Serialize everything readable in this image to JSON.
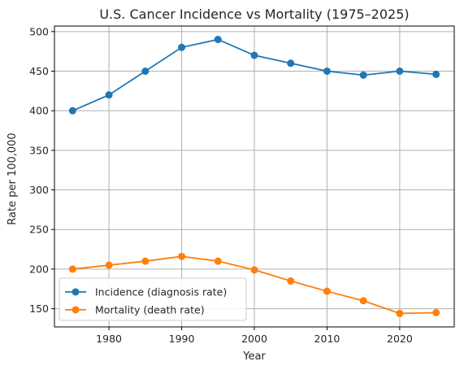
{
  "chart_data": {
    "type": "line",
    "title": "U.S. Cancer Incidence vs Mortality (1975–2025)",
    "xlabel": "Year",
    "ylabel": "Rate per 100,000",
    "x": [
      1975,
      1980,
      1985,
      1990,
      1995,
      2000,
      2005,
      2010,
      2015,
      2020,
      2025
    ],
    "xlim": [
      1972.5,
      2027.5
    ],
    "ylim": [
      127,
      507
    ],
    "xticks": [
      1980,
      1990,
      2000,
      2010,
      2020
    ],
    "yticks": [
      150,
      200,
      250,
      300,
      350,
      400,
      450,
      500
    ],
    "grid": true,
    "legend_position": "lower-left",
    "marker": "circle",
    "series": [
      {
        "name": "Incidence (diagnosis rate)",
        "color": "#1f77b4",
        "values": [
          400,
          420,
          450,
          480,
          490,
          470,
          460,
          450,
          445,
          450,
          446
        ]
      },
      {
        "name": "Mortality (death rate)",
        "color": "#ff7f0e",
        "values": [
          200,
          205,
          210,
          216,
          210,
          199,
          185,
          172,
          160,
          144,
          145
        ]
      }
    ]
  }
}
